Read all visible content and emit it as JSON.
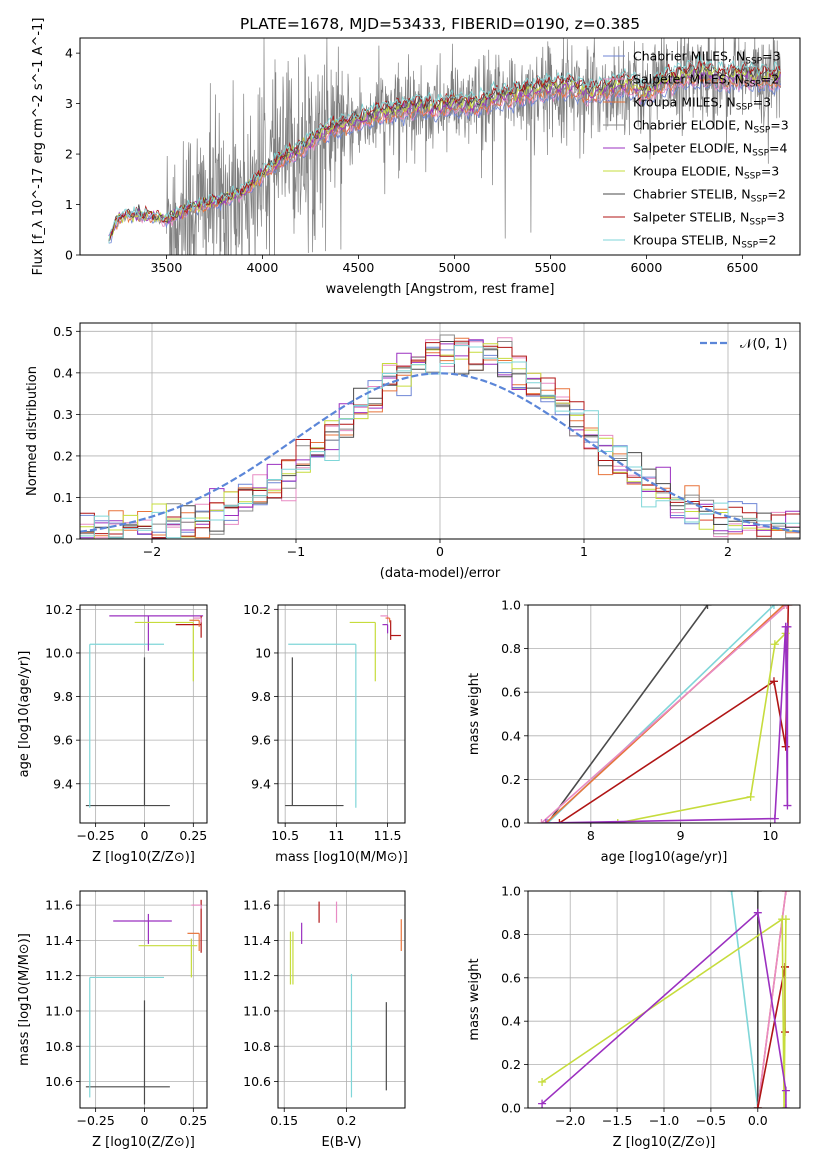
{
  "figure_title": "PLATE=1678, MJD=53433, FIBERID=0190, z=0.385",
  "legend_series": [
    {
      "name": "Chabrier MILES",
      "n": "3",
      "color": "#6f86d6"
    },
    {
      "name": "Salpeter MILES",
      "n": "2",
      "color": "#e88bc4"
    },
    {
      "name": "Kroupa MILES",
      "n": "3",
      "color": "#e8743b"
    },
    {
      "name": "Chabrier ELODIE",
      "n": "3",
      "color": "#8a8a8a"
    },
    {
      "name": "Salpeter ELODIE",
      "n": "4",
      "color": "#9b30c0"
    },
    {
      "name": "Kroupa ELODIE",
      "n": "3",
      "color": "#c6dc3c"
    },
    {
      "name": "Chabrier STELIB",
      "n": "2",
      "color": "#4a4a4a"
    },
    {
      "name": "Salpeter STELIB",
      "n": "3",
      "color": "#b01515"
    },
    {
      "name": "Kroupa STELIB",
      "n": "2",
      "color": "#7fd6d8"
    }
  ],
  "chart_data": [
    {
      "id": "spectrum",
      "type": "line",
      "title": "PLATE=1678, MJD=53433, FIBERID=0190, z=0.385",
      "xlabel": "wavelength [Angstrom, rest frame]",
      "ylabel": "Flux [f_λ 10^-17 erg cm^-2 s^-1 A^-1]",
      "xlim": [
        3050,
        6800
      ],
      "ylim": [
        0,
        4.3
      ],
      "xticks": [
        3500,
        4000,
        4500,
        5000,
        5500,
        6000,
        6500
      ],
      "yticks": [
        0,
        1,
        2,
        3,
        4
      ],
      "legend": "upper right",
      "grid": false,
      "model_continuum": {
        "x": [
          3200,
          3250,
          3300,
          3400,
          3500,
          3600,
          3700,
          3800,
          3900,
          4000,
          4100,
          4200,
          4300,
          4400,
          4500,
          4600,
          4700,
          4800,
          4900,
          5000,
          5100,
          5200,
          5300,
          5400,
          5500,
          5600,
          5700,
          5800,
          5900,
          6000,
          6100,
          6200,
          6300,
          6400,
          6500,
          6600,
          6700
        ],
        "y": [
          0.3,
          0.75,
          0.8,
          0.78,
          0.7,
          0.9,
          1.0,
          1.1,
          1.25,
          1.6,
          1.9,
          2.1,
          2.4,
          2.55,
          2.65,
          2.8,
          2.85,
          2.95,
          2.9,
          3.0,
          2.95,
          3.1,
          3.15,
          3.25,
          3.3,
          3.35,
          3.2,
          3.3,
          3.4,
          3.2,
          3.45,
          3.55,
          3.6,
          3.5,
          3.55,
          3.5,
          3.5
        ]
      },
      "data_range": [
        3500,
        6700
      ]
    },
    {
      "id": "residuals",
      "type": "histogram",
      "xlabel": "(data-model)/error",
      "ylabel": "Normed distribution",
      "xlim": [
        -2.5,
        2.5
      ],
      "ylim": [
        0,
        0.52
      ],
      "xticks": [
        -2,
        -1,
        0,
        1,
        2
      ],
      "yticks": [
        0.0,
        0.1,
        0.2,
        0.3,
        0.4,
        0.5
      ],
      "legend": "upper right",
      "reference_curve": "𝒩(0, 1)",
      "grid": true
    },
    {
      "id": "age-vs-Z",
      "type": "errorbar",
      "xlabel": "Z [log10(Z/Z⊙)]",
      "ylabel": "age [log10(age/yr)]",
      "xlim": [
        -0.33,
        0.32
      ],
      "ylim": [
        9.22,
        10.22
      ],
      "xticks": [
        -0.25,
        0.0,
        0.25
      ],
      "ytick_labels": [
        "9.4",
        "9.6",
        "9.8",
        "10.0",
        "10.2"
      ],
      "yticks": [
        9.4,
        9.6,
        9.8,
        10.0,
        10.2
      ],
      "grid": true,
      "points": [
        {
          "series": 6,
          "x": 0.0,
          "y": 9.3,
          "xerr": [
            0.3,
            0.13
          ],
          "yerr": [
            0.0,
            0.68
          ]
        },
        {
          "series": 8,
          "x": -0.28,
          "y": 10.04,
          "xerr": [
            0.0,
            0.38
          ],
          "yerr": [
            0.75,
            0.0
          ]
        },
        {
          "series": 4,
          "x": 0.02,
          "y": 10.17,
          "xerr": [
            0.2,
            0.28
          ],
          "yerr": [
            0.16,
            0.0
          ]
        },
        {
          "series": 5,
          "x": 0.25,
          "y": 10.14,
          "xerr": [
            0.3,
            0.0
          ],
          "yerr": [
            0.27,
            0.0
          ]
        },
        {
          "series": 7,
          "x": 0.29,
          "y": 10.13,
          "xerr": [
            0.13,
            0.0
          ],
          "yerr": [
            0.06,
            0.04
          ]
        },
        {
          "series": 2,
          "x": 0.28,
          "y": 10.15,
          "xerr": [
            0.05,
            0.0
          ],
          "yerr": [
            0.03,
            0.0
          ]
        },
        {
          "series": 1,
          "x": 0.29,
          "y": 10.16,
          "xerr": [
            0.04,
            0.0
          ],
          "yerr": [
            0.02,
            0.0
          ]
        }
      ]
    },
    {
      "id": "age-vs-mass",
      "type": "errorbar",
      "xlabel": "mass [log10(M/M⊙)]",
      "ylabel": "",
      "xlim": [
        10.43,
        11.67
      ],
      "ylim": [
        9.22,
        10.22
      ],
      "xticks": [
        10.5,
        11.0,
        11.5
      ],
      "yticks": [
        9.4,
        9.6,
        9.8,
        10.0,
        10.2
      ],
      "grid": true,
      "points": [
        {
          "series": 6,
          "x": 10.57,
          "y": 9.3,
          "xerr": [
            0.07,
            0.5
          ],
          "yerr": [
            0.0,
            0.68
          ]
        },
        {
          "series": 8,
          "x": 11.19,
          "y": 10.04,
          "xerr": [
            0.66,
            0.0
          ],
          "yerr": [
            0.75,
            0.0
          ]
        },
        {
          "series": 5,
          "x": 11.38,
          "y": 10.14,
          "xerr": [
            0.25,
            0.0
          ],
          "yerr": [
            0.27,
            0.0
          ]
        },
        {
          "series": 4,
          "x": 11.5,
          "y": 10.13,
          "xerr": [
            0.05,
            0.0
          ],
          "yerr": [
            0.04,
            0.0
          ]
        },
        {
          "series": 7,
          "x": 11.53,
          "y": 10.08,
          "xerr": [
            0.0,
            0.1
          ],
          "yerr": [
            0.02,
            0.07
          ]
        },
        {
          "series": 1,
          "x": 11.5,
          "y": 10.17,
          "xerr": [
            0.07,
            0.0
          ],
          "yerr": [
            0.02,
            0.0
          ]
        },
        {
          "series": 2,
          "x": 11.52,
          "y": 10.16,
          "xerr": [
            0.04,
            0.0
          ],
          "yerr": [
            0.02,
            0.0
          ]
        }
      ]
    },
    {
      "id": "mass-weight-vs-age",
      "type": "line",
      "xlabel": "age [log10(age/yr)]",
      "ylabel": "mass weight",
      "xlim": [
        7.3,
        10.33
      ],
      "ylim": [
        0,
        1.0
      ],
      "xticks": [
        8,
        9,
        10
      ],
      "yticks": [
        0.0,
        0.2,
        0.4,
        0.6,
        0.8,
        1.0
      ],
      "grid": true,
      "series_points": [
        {
          "series": 6,
          "x": [
            7.52,
            9.3
          ],
          "y": [
            0.0,
            1.0
          ]
        },
        {
          "series": 8,
          "x": [
            7.52,
            10.04
          ],
          "y": [
            0.0,
            1.0
          ]
        },
        {
          "series": 2,
          "x": [
            7.5,
            10.15
          ],
          "y": [
            0.0,
            1.0
          ]
        },
        {
          "series": 1,
          "x": [
            7.45,
            10.18
          ],
          "y": [
            0.0,
            1.0
          ]
        },
        {
          "series": 7,
          "x": [
            7.65,
            10.04,
            10.17,
            10.2
          ],
          "y": [
            0.0,
            0.65,
            0.35,
            1.0
          ]
        },
        {
          "series": 5,
          "x": [
            8.3,
            9.78,
            10.05,
            10.17
          ],
          "y": [
            0.0,
            0.12,
            0.82,
            0.87
          ]
        },
        {
          "series": 4,
          "x": [
            7.5,
            10.05,
            10.17,
            10.19,
            10.19
          ],
          "y": [
            0.0,
            0.02,
            0.9,
            0.08,
            0.9
          ]
        }
      ]
    },
    {
      "id": "mass-vs-Z",
      "type": "errorbar",
      "xlabel": "Z [log10(Z/Z⊙)]",
      "ylabel": "mass [log10(M/M⊙)]",
      "xlim": [
        -0.33,
        0.32
      ],
      "ylim": [
        10.45,
        11.68
      ],
      "xticks": [
        -0.25,
        0.0,
        0.25
      ],
      "yticks": [
        10.6,
        10.8,
        11.0,
        11.2,
        11.4,
        11.6
      ],
      "grid": true,
      "points": [
        {
          "series": 6,
          "x": 0.0,
          "y": 10.57,
          "xerr": [
            0.3,
            0.13
          ],
          "yerr": [
            0.1,
            0.49
          ]
        },
        {
          "series": 8,
          "x": -0.28,
          "y": 11.19,
          "xerr": [
            0.0,
            0.38
          ],
          "yerr": [
            0.68,
            0.0
          ]
        },
        {
          "series": 4,
          "x": 0.02,
          "y": 11.51,
          "xerr": [
            0.18,
            0.12
          ],
          "yerr": [
            0.13,
            0.04
          ]
        },
        {
          "series": 5,
          "x": 0.24,
          "y": 11.37,
          "xerr": [
            0.27,
            0.03
          ],
          "yerr": [
            0.18,
            0.04
          ]
        },
        {
          "series": 7,
          "x": 0.29,
          "y": 11.45,
          "xerr": [
            0.0,
            0.0
          ],
          "yerr": [
            0.12,
            0.18
          ]
        },
        {
          "series": 2,
          "x": 0.28,
          "y": 11.44,
          "xerr": [
            0.06,
            0.0
          ],
          "yerr": [
            0.1,
            0.0
          ]
        },
        {
          "series": 1,
          "x": 0.29,
          "y": 11.6,
          "xerr": [
            0.05,
            0.0
          ],
          "yerr": [
            0.02,
            0.0
          ]
        }
      ]
    },
    {
      "id": "mass-vs-EBV",
      "type": "errorbar",
      "xlabel": "E(B-V)",
      "ylabel": "",
      "xlim": [
        0.145,
        0.247
      ],
      "ylim": [
        10.45,
        11.68
      ],
      "xticks": [
        0.15,
        0.2
      ],
      "yticks": [
        10.6,
        10.8,
        11.0,
        11.2,
        11.4,
        11.6
      ],
      "grid": true,
      "points": [
        {
          "series": 6,
          "x": 0.232,
          "y": 10.8,
          "xerr": [
            0.0,
            0.0
          ],
          "yerr": [
            0.25,
            0.25
          ]
        },
        {
          "series": 8,
          "x": 0.204,
          "y": 10.86,
          "xerr": [
            0.0,
            0.0
          ],
          "yerr": [
            0.35,
            0.35
          ]
        },
        {
          "series": 5,
          "x": 0.155,
          "y": 11.3,
          "xerr": [
            0.0,
            0.0
          ],
          "yerr": [
            0.15,
            0.15
          ]
        },
        {
          "series": 5,
          "x": 0.157,
          "y": 11.3,
          "xerr": [
            0.0,
            0.0
          ],
          "yerr": [
            0.15,
            0.15
          ]
        },
        {
          "series": 4,
          "x": 0.164,
          "y": 11.44,
          "xerr": [
            0.0,
            0.0
          ],
          "yerr": [
            0.06,
            0.06
          ]
        },
        {
          "series": 7,
          "x": 0.178,
          "y": 11.56,
          "xerr": [
            0.0,
            0.0
          ],
          "yerr": [
            0.06,
            0.06
          ]
        },
        {
          "series": 1,
          "x": 0.192,
          "y": 11.56,
          "xerr": [
            0.0,
            0.0
          ],
          "yerr": [
            0.06,
            0.06
          ]
        },
        {
          "series": 2,
          "x": 0.244,
          "y": 11.43,
          "xerr": [
            0.0,
            0.0
          ],
          "yerr": [
            0.09,
            0.09
          ]
        }
      ]
    },
    {
      "id": "mass-weight-vs-Z",
      "type": "line",
      "xlabel": "Z [log10(Z/Z⊙)]",
      "ylabel": "mass weight",
      "xlim": [
        -2.45,
        0.45
      ],
      "ylim": [
        0,
        1.0
      ],
      "xticks": [
        -2.0,
        -1.5,
        -1.0,
        -0.5,
        0.0
      ],
      "xtick_labels": [
        "−2.0",
        "−1.5",
        "−1.0",
        "−0.5",
        "0.0"
      ],
      "yticks": [
        0.0,
        0.2,
        0.4,
        0.6,
        0.8,
        1.0
      ],
      "grid": true,
      "series_points": [
        {
          "series": 8,
          "x": [
            -0.28,
            0.0
          ],
          "y": [
            1.0,
            0.0
          ]
        },
        {
          "series": 6,
          "x": [
            0.0,
            0.0
          ],
          "y": [
            0.0,
            1.0
          ]
        },
        {
          "series": 2,
          "x": [
            0.0,
            0.3
          ],
          "y": [
            0.0,
            1.0
          ]
        },
        {
          "series": 1,
          "x": [
            0.0,
            0.3
          ],
          "y": [
            0.0,
            1.0
          ]
        },
        {
          "series": 7,
          "x": [
            0.0,
            0.29,
            0.29,
            0.29
          ],
          "y": [
            0.0,
            0.65,
            0.35,
            0.65
          ]
        },
        {
          "series": 5,
          "x": [
            -2.3,
            0.26,
            0.28,
            0.3
          ],
          "y": [
            0.12,
            0.87,
            0.0,
            0.87
          ]
        },
        {
          "series": 4,
          "x": [
            -2.3,
            0.0,
            0.3,
            0.3
          ],
          "y": [
            0.02,
            0.9,
            0.08,
            0.0
          ]
        }
      ]
    }
  ]
}
